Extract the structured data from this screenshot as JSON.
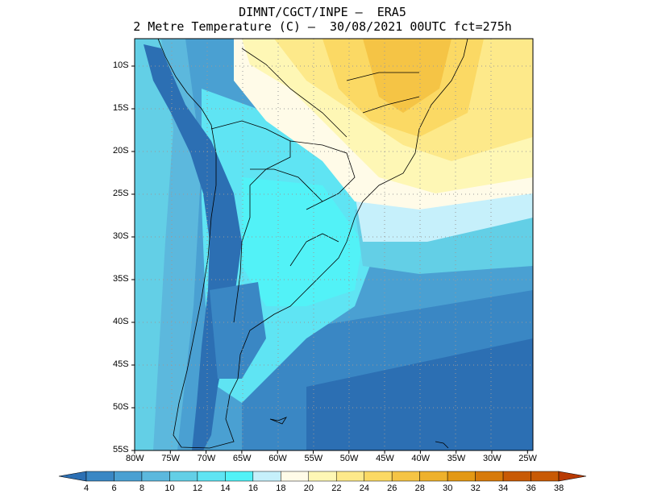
{
  "title_line1": "DIMNT/CGCT/INPE –  ERA5",
  "title_line2": "2 Metre Temperature (C) –  30/08/2021 00UTC fct=275h",
  "lat_labels": [
    "10S",
    "15S",
    "20S",
    "25S",
    "30S",
    "35S",
    "40S",
    "45S",
    "50S",
    "55S"
  ],
  "lon_labels": [
    "80W",
    "75W",
    "70W",
    "65W",
    "60W",
    "55W",
    "50W",
    "45W",
    "40W",
    "35W",
    "30W",
    "25W"
  ],
  "colorbar": {
    "values": [
      "4",
      "6",
      "8",
      "10",
      "12",
      "14",
      "16",
      "18",
      "20",
      "22",
      "24",
      "26",
      "28",
      "30",
      "32",
      "34",
      "36",
      "38"
    ],
    "colors": [
      "#2c6fb3",
      "#3a87c4",
      "#4aa0d2",
      "#5cb8dd",
      "#63cfe6",
      "#5fe4f3",
      "#52f2f7",
      "#c6f0fb",
      "#fffbe8",
      "#fef7b5",
      "#fde98a",
      "#fbd964",
      "#f5c445",
      "#eeb12c",
      "#e39814",
      "#d77a0a",
      "#c85a05",
      "#b83a02"
    ],
    "left_arrow_color": "#2c6fb3",
    "right_arrow_color": "#b83a02"
  },
  "palette": {
    "deep_blue": "#2c6fb3",
    "mid_blue": "#3a87c4",
    "light_blue": "#4aa0d2",
    "sky": "#5cb8dd",
    "cyan": "#63cfe6",
    "aqua": "#5fe4f3",
    "pale_cyan": "#c6f0fb",
    "cream": "#fffbe8",
    "pale_yellow": "#fef7b5",
    "yellow": "#fde98a",
    "gold": "#fbd964",
    "amber": "#f5c445"
  }
}
